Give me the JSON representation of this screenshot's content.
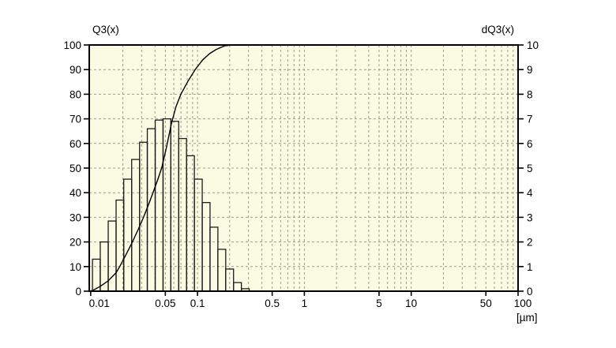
{
  "chart_data": {
    "type": "histogram",
    "subtype": "particle-size-distribution with cumulative line",
    "left_axis": {
      "title": "Q3(x)",
      "min": 0,
      "max": 100,
      "tick_step": 10,
      "tick_values": [
        100,
        90,
        80,
        70,
        60,
        50,
        40,
        30,
        20,
        10,
        0
      ],
      "tick_labels": [
        "100",
        "90",
        "80",
        "70",
        "60",
        "50",
        "40",
        "30",
        "20",
        "10",
        "0"
      ]
    },
    "right_axis": {
      "title": "dQ3(x)",
      "min": 0,
      "max": 10,
      "tick_step": 1,
      "tick_values": [
        10,
        9,
        8,
        7,
        6,
        5,
        4,
        3,
        2,
        1,
        0
      ],
      "tick_labels": [
        "10",
        "9",
        "8",
        "7",
        "6",
        "5",
        "4",
        "3",
        "2",
        "1",
        "0"
      ]
    },
    "x_axis": {
      "scale": "log",
      "unit_label": "[µm]",
      "min": 0.0097,
      "max": 100,
      "tick_values": [
        0.01,
        0.05,
        0.1,
        0.5,
        1,
        5,
        10,
        50,
        100
      ],
      "tick_labels": [
        "0.01",
        "0.05",
        "0.1",
        "0.5",
        "1",
        "5",
        "10",
        "50",
        "100"
      ]
    },
    "grid": {
      "horizontal_lines_at": [
        10,
        20,
        30,
        40,
        50,
        60,
        70,
        80,
        90
      ],
      "vertical_minor_multipliers": [
        2,
        3,
        4,
        5,
        6,
        7,
        8,
        9,
        10
      ],
      "style": "dashed"
    },
    "histogram_dQ3": {
      "series_name": "dQ3(x)",
      "bin_edges_um": [
        0.0104,
        0.0123,
        0.0146,
        0.0173,
        0.0204,
        0.0242,
        0.0287,
        0.0339,
        0.0402,
        0.0476,
        0.0563,
        0.0667,
        0.0789,
        0.0935,
        0.1107,
        0.131,
        0.1551,
        0.1836,
        0.2174,
        0.2574,
        0.3047
      ],
      "heights_dQ3": [
        1.3,
        2.0,
        2.85,
        3.7,
        4.55,
        5.35,
        6.05,
        6.6,
        6.95,
        7.0,
        6.9,
        6.2,
        5.5,
        4.55,
        3.6,
        2.6,
        1.7,
        0.9,
        0.35,
        0.1
      ]
    },
    "cumulative_Q3_points": [
      [
        0.0097,
        0
      ],
      [
        0.0104,
        0.3
      ],
      [
        0.011,
        0.8
      ],
      [
        0.0123,
        2
      ],
      [
        0.0146,
        4.2
      ],
      [
        0.0173,
        7.5
      ],
      [
        0.0187,
        10
      ],
      [
        0.0215,
        15
      ],
      [
        0.0246,
        20
      ],
      [
        0.0278,
        25
      ],
      [
        0.0312,
        30
      ],
      [
        0.0347,
        35
      ],
      [
        0.0383,
        40
      ],
      [
        0.0422,
        45
      ],
      [
        0.0462,
        50
      ],
      [
        0.051,
        58
      ],
      [
        0.0569,
        68
      ],
      [
        0.063,
        75
      ],
      [
        0.0699,
        80
      ],
      [
        0.082,
        85.5
      ],
      [
        0.0951,
        90
      ],
      [
        0.112,
        94
      ],
      [
        0.13,
        96.5
      ],
      [
        0.15,
        98.2
      ],
      [
        0.165,
        99
      ],
      [
        0.182,
        99.7
      ],
      [
        0.21,
        100
      ],
      [
        100,
        100
      ]
    ],
    "colors": {
      "page_background": "#ffffff",
      "plot_background": "#fbfbe4",
      "grid_line": "#9c9c8a",
      "bar_outline": "#1c1c1c",
      "bar_fill": "none",
      "curve": "#000000",
      "frame": "#000000",
      "text": "#000000"
    }
  }
}
